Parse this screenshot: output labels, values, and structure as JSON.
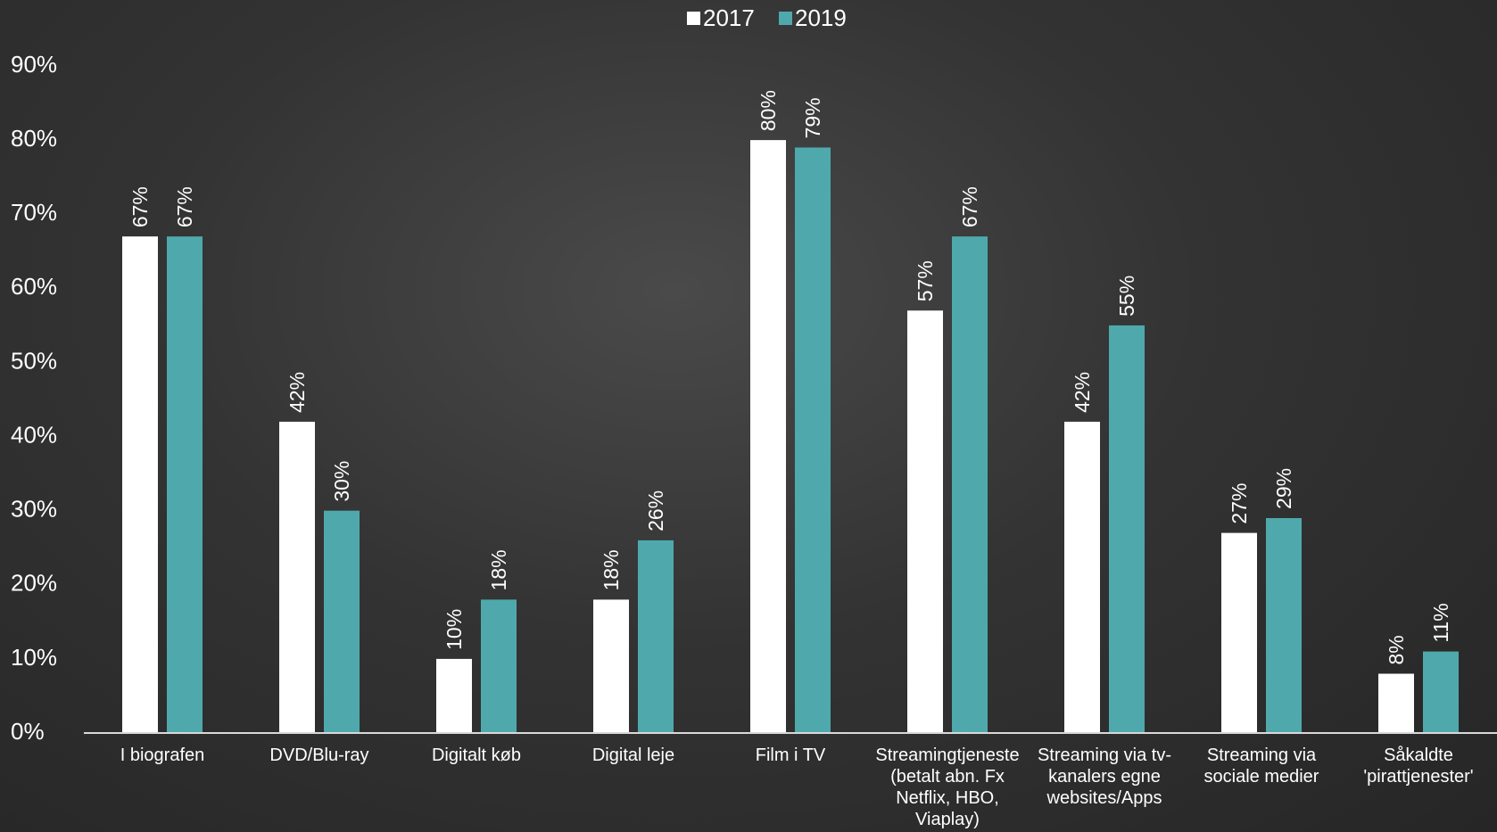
{
  "chart_data": {
    "type": "bar",
    "categories": [
      "I biografen",
      "DVD/Blu-ray",
      "Digitalt køb",
      "Digital leje",
      "Film i TV",
      "Streamingtjeneste (betalt abn. Fx Netflix, HBO, Viaplay)",
      "Streaming via tv-kanalers egne websites/Apps",
      "Streaming via sociale medier",
      "Såkaldte 'pirattjenester'"
    ],
    "series": [
      {
        "name": "2017",
        "color": "#ffffff",
        "values": [
          67,
          42,
          10,
          18,
          80,
          57,
          42,
          27,
          8
        ],
        "value_labels": [
          "67%",
          "42%",
          "10%",
          "18%",
          "80%",
          "57%",
          "42%",
          "27%",
          "8%"
        ]
      },
      {
        "name": "2019",
        "color": "#4fa9ac",
        "values": [
          67,
          30,
          18,
          26,
          79,
          67,
          55,
          29,
          11
        ],
        "value_labels": [
          "67%",
          "30%",
          "18%",
          "26%",
          "79%",
          "67%",
          "55%",
          "29%",
          "11%"
        ]
      }
    ],
    "ylim": [
      0,
      90
    ],
    "yticks": [
      {
        "value": 0,
        "label": "0%"
      },
      {
        "value": 10,
        "label": "10%"
      },
      {
        "value": 20,
        "label": "20%"
      },
      {
        "value": 30,
        "label": "30%"
      },
      {
        "value": 40,
        "label": "40%"
      },
      {
        "value": 50,
        "label": "50%"
      },
      {
        "value": 60,
        "label": "60%"
      },
      {
        "value": 70,
        "label": "70%"
      },
      {
        "value": 80,
        "label": "80%"
      },
      {
        "value": 90,
        "label": "90%"
      }
    ],
    "legend": "top"
  }
}
